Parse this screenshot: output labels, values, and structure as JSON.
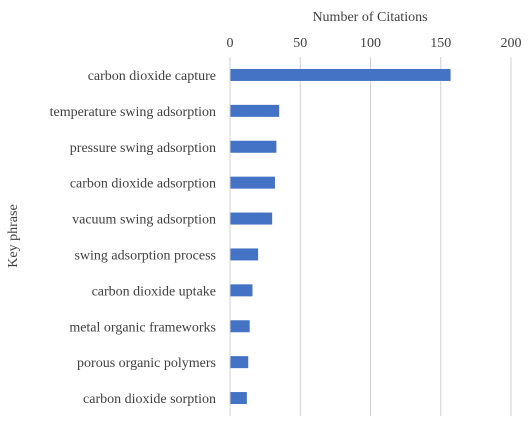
{
  "chart_data": {
    "type": "bar",
    "orientation": "horizontal",
    "categories": [
      "carbon dioxide capture",
      "temperature swing adsorption",
      "pressure swing adsorption",
      "carbon dioxide adsorption",
      "vacuum swing adsorption",
      "swing adsorption process",
      "carbon dioxide uptake",
      "metal organic frameworks",
      "porous organic polymers",
      "carbon dioxide sorption"
    ],
    "values": [
      157,
      35,
      33,
      32,
      30,
      20,
      16,
      14,
      13,
      12
    ],
    "xlabel": "Number of Citations",
    "ylabel": "Key phrase",
    "xlim": [
      0,
      200
    ],
    "xticks": [
      0,
      50,
      100,
      150,
      200
    ],
    "xaxis_position": "top",
    "grid": "vertical",
    "bar_color": "#4472c4",
    "legend": "none"
  }
}
